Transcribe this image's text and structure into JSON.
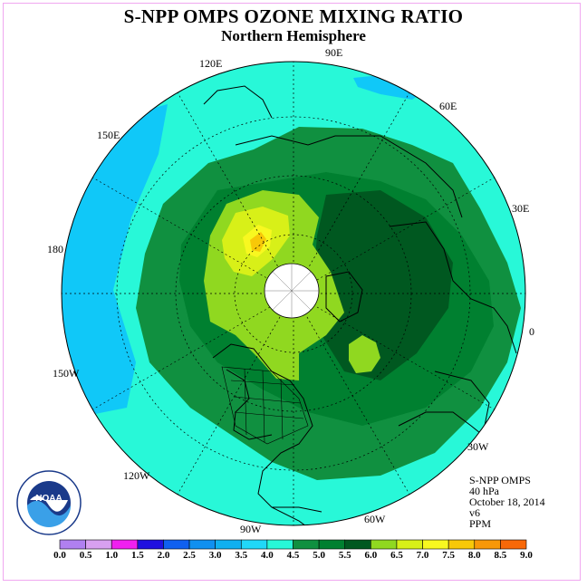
{
  "title": "S-NPP OMPS OZONE MIXING RATIO",
  "subtitle": "Northern Hemisphere",
  "longitude_labels": {
    "l90e": "90E",
    "l60e": "60E",
    "l30e": "30E",
    "l0": "0",
    "l30w": "30W",
    "l60w": "60W",
    "l90w": "90W",
    "l120w": "120W",
    "l150w": "150W",
    "l180": "180",
    "l150e": "150E",
    "l120e": "120E"
  },
  "info": {
    "line1": "S-NPP OMPS",
    "line2": "40 hPa",
    "line3": "October 18, 2014",
    "line4": "v6",
    "line5": "PPM"
  },
  "colorbar": {
    "ticks": [
      "0.0",
      "0.5",
      "1.0",
      "1.5",
      "2.0",
      "2.5",
      "3.0",
      "3.5",
      "4.0",
      "4.5",
      "5.0",
      "5.5",
      "6.0",
      "6.5",
      "7.0",
      "7.5",
      "8.0",
      "8.5",
      "9.0"
    ],
    "colors": [
      "#b080f0",
      "#d8a0f0",
      "#f020f0",
      "#2010e0",
      "#1060f0",
      "#1090f0",
      "#10b0f0",
      "#20d8f8",
      "#28f8d8",
      "#109040",
      "#008030",
      "#005820",
      "#90d820",
      "#d8f018",
      "#f8f820",
      "#f8c808",
      "#f89808",
      "#f86808",
      "#f01010",
      "#907050"
    ]
  },
  "logo": {
    "text": "NOAA"
  },
  "colors": {
    "outer": "#28f8d8",
    "low": "#10c8f8",
    "mid": "#109040",
    "high": "#005820",
    "enh": "#90d820",
    "enh2": "#d8f018",
    "peak": "#f8c808",
    "land": "#000000"
  }
}
